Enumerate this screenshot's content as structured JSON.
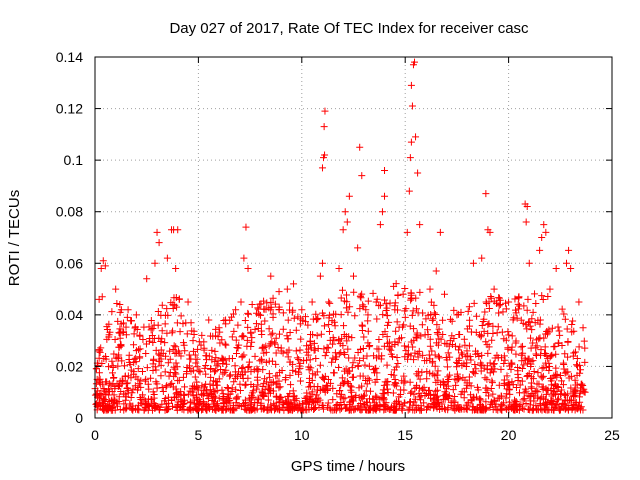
{
  "chart_data": {
    "type": "scatter",
    "title": "Day 027 of 2017, Rate Of TEC Index for receiver casc",
    "xlabel": "GPS time / hours",
    "ylabel": "ROTI / TECUs",
    "xlim": [
      0,
      25
    ],
    "ylim": [
      0,
      0.14
    ],
    "xticks": [
      0,
      5,
      10,
      15,
      20,
      25
    ],
    "xtick_labels": [
      "0",
      "5",
      "10",
      "15",
      "20",
      "25"
    ],
    "yticks": [
      0,
      0.02,
      0.04,
      0.06,
      0.08,
      0.1,
      0.12,
      0.14
    ],
    "ytick_labels": [
      "0",
      "0.02",
      "0.04",
      "0.06",
      "0.08",
      "0.1",
      "0.12",
      "0.14"
    ],
    "grid": true,
    "marker": "+",
    "color": "#ff0000",
    "series": [
      {
        "name": "ROTI",
        "points": [
          [
            0.2,
            0.046
          ],
          [
            0.3,
            0.058
          ],
          [
            0.4,
            0.061
          ],
          [
            0.5,
            0.059
          ],
          [
            0.35,
            0.047
          ],
          [
            1.0,
            0.05
          ],
          [
            1.2,
            0.044
          ],
          [
            1.6,
            0.042
          ],
          [
            2.0,
            0.04
          ],
          [
            2.5,
            0.054
          ],
          [
            2.9,
            0.06
          ],
          [
            3.0,
            0.072
          ],
          [
            3.1,
            0.068
          ],
          [
            3.5,
            0.062
          ],
          [
            3.7,
            0.073
          ],
          [
            3.8,
            0.073
          ],
          [
            4.0,
            0.073
          ],
          [
            3.9,
            0.058
          ],
          [
            4.5,
            0.045
          ],
          [
            5.5,
            0.038
          ],
          [
            6.0,
            0.035
          ],
          [
            6.8,
            0.042
          ],
          [
            7.2,
            0.062
          ],
          [
            7.3,
            0.074
          ],
          [
            7.4,
            0.058
          ],
          [
            7.6,
            0.044
          ],
          [
            8.5,
            0.055
          ],
          [
            8.9,
            0.049
          ],
          [
            9.3,
            0.05
          ],
          [
            9.6,
            0.052
          ],
          [
            10.0,
            0.042
          ],
          [
            10.5,
            0.045
          ],
          [
            10.9,
            0.055
          ],
          [
            11.0,
            0.06
          ],
          [
            11.05,
            0.101
          ],
          [
            11.1,
            0.102
          ],
          [
            11.08,
            0.113
          ],
          [
            11.12,
            0.119
          ],
          [
            11.0,
            0.097
          ],
          [
            11.3,
            0.045
          ],
          [
            11.8,
            0.058
          ],
          [
            12.0,
            0.073
          ],
          [
            12.1,
            0.08
          ],
          [
            12.3,
            0.086
          ],
          [
            12.2,
            0.076
          ],
          [
            12.5,
            0.055
          ],
          [
            12.7,
            0.066
          ],
          [
            12.8,
            0.105
          ],
          [
            12.9,
            0.094
          ],
          [
            13.2,
            0.04
          ],
          [
            13.6,
            0.045
          ],
          [
            13.8,
            0.075
          ],
          [
            13.9,
            0.08
          ],
          [
            14.0,
            0.086
          ],
          [
            14.0,
            0.096
          ],
          [
            14.5,
            0.042
          ],
          [
            14.9,
            0.048
          ],
          [
            15.1,
            0.072
          ],
          [
            15.2,
            0.088
          ],
          [
            15.25,
            0.101
          ],
          [
            15.3,
            0.107
          ],
          [
            15.35,
            0.121
          ],
          [
            15.3,
            0.129
          ],
          [
            15.4,
            0.137
          ],
          [
            15.45,
            0.138
          ],
          [
            15.5,
            0.109
          ],
          [
            15.6,
            0.095
          ],
          [
            15.7,
            0.075
          ],
          [
            16.2,
            0.05
          ],
          [
            16.5,
            0.057
          ],
          [
            16.7,
            0.072
          ],
          [
            16.9,
            0.048
          ],
          [
            17.5,
            0.04
          ],
          [
            18.3,
            0.06
          ],
          [
            18.7,
            0.062
          ],
          [
            18.9,
            0.087
          ],
          [
            19.0,
            0.073
          ],
          [
            19.1,
            0.072
          ],
          [
            19.3,
            0.05
          ],
          [
            20.0,
            0.045
          ],
          [
            20.5,
            0.047
          ],
          [
            20.8,
            0.083
          ],
          [
            20.9,
            0.082
          ],
          [
            20.85,
            0.076
          ],
          [
            21.0,
            0.06
          ],
          [
            21.5,
            0.065
          ],
          [
            21.6,
            0.07
          ],
          [
            21.7,
            0.075
          ],
          [
            21.8,
            0.072
          ],
          [
            22.0,
            0.05
          ],
          [
            22.3,
            0.058
          ],
          [
            22.8,
            0.06
          ],
          [
            22.9,
            0.065
          ],
          [
            23.0,
            0.058
          ],
          [
            23.4,
            0.045
          ],
          [
            23.6,
            0.035
          ],
          [
            23.7,
            0.01
          ]
        ],
        "dense_band": {
          "description": "thousands of ROTI samples between 0.003 and roughly 0.05 TECU across 0 to 23.7 h",
          "x_range": [
            0.0,
            23.7
          ],
          "y_floor": 0.003,
          "profile": [
            [
              0,
              0.025
            ],
            [
              1,
              0.045
            ],
            [
              2,
              0.038
            ],
            [
              3,
              0.042
            ],
            [
              4,
              0.05
            ],
            [
              5,
              0.032
            ],
            [
              6,
              0.036
            ],
            [
              7,
              0.045
            ],
            [
              8,
              0.045
            ],
            [
              9,
              0.048
            ],
            [
              10,
              0.04
            ],
            [
              11,
              0.045
            ],
            [
              12,
              0.05
            ],
            [
              13,
              0.048
            ],
            [
              14,
              0.05
            ],
            [
              15,
              0.055
            ],
            [
              16,
              0.048
            ],
            [
              17,
              0.04
            ],
            [
              18,
              0.045
            ],
            [
              19,
              0.05
            ],
            [
              20,
              0.045
            ],
            [
              21,
              0.05
            ],
            [
              22,
              0.048
            ],
            [
              23,
              0.04
            ],
            [
              23.7,
              0.03
            ]
          ]
        }
      }
    ]
  }
}
